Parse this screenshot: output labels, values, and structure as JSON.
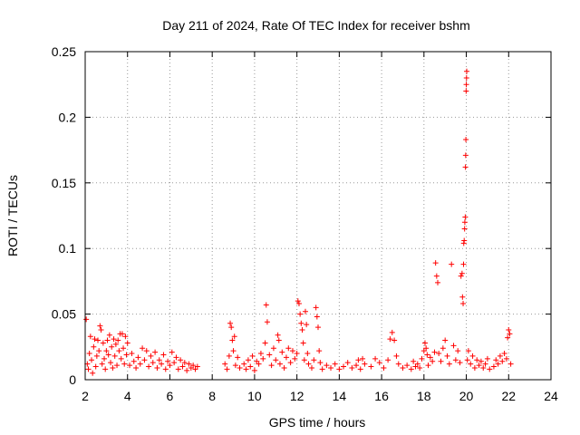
{
  "chart_data": {
    "type": "scatter",
    "title": "Day 211 of 2024, Rate Of TEC Index for receiver bshm",
    "xlabel": "GPS time / hours",
    "ylabel": "ROTI / TECUs",
    "xlim": [
      2,
      24
    ],
    "ylim": [
      0,
      0.25
    ],
    "xticks": [
      2,
      4,
      6,
      8,
      10,
      12,
      14,
      16,
      18,
      20,
      22,
      24
    ],
    "xtick_labels": [
      "2",
      "4",
      "6",
      "8",
      "10",
      "12",
      "14",
      "16",
      "18",
      "20",
      "22",
      "24"
    ],
    "yticks": [
      0,
      0.05,
      0.1,
      0.15,
      0.2,
      0.25
    ],
    "ytick_labels": [
      "0",
      "0.05",
      "0.1",
      "0.15",
      "0.2",
      "0.25"
    ],
    "grid": true,
    "marker": "+",
    "color": "#ff0000",
    "series": [
      {
        "name": "ROTI",
        "points": [
          [
            2.05,
            0.046
          ],
          [
            2.1,
            0.012
          ],
          [
            2.15,
            0.008
          ],
          [
            2.2,
            0.02
          ],
          [
            2.25,
            0.033
          ],
          [
            2.3,
            0.015
          ],
          [
            2.35,
            0.005
          ],
          [
            2.4,
            0.025
          ],
          [
            2.45,
            0.031
          ],
          [
            2.5,
            0.01
          ],
          [
            2.55,
            0.018
          ],
          [
            2.6,
            0.03
          ],
          [
            2.65,
            0.022
          ],
          [
            2.7,
            0.041
          ],
          [
            2.75,
            0.038
          ],
          [
            2.8,
            0.012
          ],
          [
            2.85,
            0.028
          ],
          [
            2.9,
            0.016
          ],
          [
            2.95,
            0.008
          ],
          [
            3.0,
            0.022
          ],
          [
            3.05,
            0.03
          ],
          [
            3.1,
            0.019
          ],
          [
            3.15,
            0.034
          ],
          [
            3.2,
            0.013
          ],
          [
            3.25,
            0.025
          ],
          [
            3.3,
            0.009
          ],
          [
            3.35,
            0.031
          ],
          [
            3.4,
            0.018
          ],
          [
            3.45,
            0.027
          ],
          [
            3.5,
            0.011
          ],
          [
            3.55,
            0.03
          ],
          [
            3.6,
            0.022
          ],
          [
            3.65,
            0.035
          ],
          [
            3.7,
            0.016
          ],
          [
            3.75,
            0.035
          ],
          [
            3.8,
            0.024
          ],
          [
            3.85,
            0.012
          ],
          [
            3.9,
            0.033
          ],
          [
            3.95,
            0.019
          ],
          [
            4.0,
            0.028
          ],
          [
            4.1,
            0.011
          ],
          [
            4.2,
            0.02
          ],
          [
            4.3,
            0.014
          ],
          [
            4.4,
            0.009
          ],
          [
            4.5,
            0.017
          ],
          [
            4.6,
            0.012
          ],
          [
            4.7,
            0.024
          ],
          [
            4.8,
            0.015
          ],
          [
            4.9,
            0.022
          ],
          [
            5.0,
            0.01
          ],
          [
            5.1,
            0.018
          ],
          [
            5.2,
            0.013
          ],
          [
            5.3,
            0.021
          ],
          [
            5.4,
            0.009
          ],
          [
            5.5,
            0.015
          ],
          [
            5.6,
            0.012
          ],
          [
            5.7,
            0.019
          ],
          [
            5.8,
            0.008
          ],
          [
            5.9,
            0.014
          ],
          [
            6.0,
            0.011
          ],
          [
            6.1,
            0.021
          ],
          [
            6.2,
            0.013
          ],
          [
            6.3,
            0.017
          ],
          [
            6.4,
            0.008
          ],
          [
            6.5,
            0.015
          ],
          [
            6.6,
            0.01
          ],
          [
            6.7,
            0.013
          ],
          [
            6.8,
            0.007
          ],
          [
            6.9,
            0.012
          ],
          [
            7.0,
            0.009
          ],
          [
            7.1,
            0.011
          ],
          [
            7.2,
            0.008
          ],
          [
            7.3,
            0.01
          ],
          [
            8.6,
            0.012
          ],
          [
            8.7,
            0.008
          ],
          [
            8.8,
            0.018
          ],
          [
            8.85,
            0.043
          ],
          [
            8.9,
            0.04
          ],
          [
            8.95,
            0.03
          ],
          [
            9.0,
            0.022
          ],
          [
            9.05,
            0.033
          ],
          [
            9.1,
            0.011
          ],
          [
            9.2,
            0.017
          ],
          [
            9.3,
            0.009
          ],
          [
            9.5,
            0.012
          ],
          [
            9.6,
            0.008
          ],
          [
            9.7,
            0.015
          ],
          [
            9.8,
            0.01
          ],
          [
            9.9,
            0.018
          ],
          [
            10.0,
            0.007
          ],
          [
            10.1,
            0.014
          ],
          [
            10.2,
            0.012
          ],
          [
            10.3,
            0.02
          ],
          [
            10.4,
            0.016
          ],
          [
            10.5,
            0.028
          ],
          [
            10.55,
            0.057
          ],
          [
            10.6,
            0.044
          ],
          [
            10.7,
            0.019
          ],
          [
            10.8,
            0.011
          ],
          [
            10.9,
            0.024
          ],
          [
            11.0,
            0.015
          ],
          [
            11.1,
            0.034
          ],
          [
            11.15,
            0.03
          ],
          [
            11.2,
            0.012
          ],
          [
            11.3,
            0.021
          ],
          [
            11.4,
            0.009
          ],
          [
            11.5,
            0.017
          ],
          [
            11.6,
            0.024
          ],
          [
            11.7,
            0.013
          ],
          [
            11.8,
            0.022
          ],
          [
            11.9,
            0.016
          ],
          [
            12.0,
            0.02
          ],
          [
            12.05,
            0.06
          ],
          [
            12.1,
            0.058
          ],
          [
            12.15,
            0.05
          ],
          [
            12.2,
            0.043
          ],
          [
            12.25,
            0.038
          ],
          [
            12.3,
            0.028
          ],
          [
            12.35,
            0.015
          ],
          [
            12.4,
            0.052
          ],
          [
            12.45,
            0.042
          ],
          [
            12.5,
            0.02
          ],
          [
            12.55,
            0.012
          ],
          [
            12.7,
            0.009
          ],
          [
            12.8,
            0.015
          ],
          [
            12.9,
            0.055
          ],
          [
            12.95,
            0.048
          ],
          [
            13.0,
            0.04
          ],
          [
            13.05,
            0.022
          ],
          [
            13.1,
            0.013
          ],
          [
            13.2,
            0.008
          ],
          [
            13.4,
            0.011
          ],
          [
            13.6,
            0.009
          ],
          [
            13.8,
            0.012
          ],
          [
            14.0,
            0.008
          ],
          [
            14.2,
            0.01
          ],
          [
            14.4,
            0.013
          ],
          [
            14.6,
            0.009
          ],
          [
            14.8,
            0.011
          ],
          [
            14.9,
            0.015
          ],
          [
            15.0,
            0.008
          ],
          [
            15.1,
            0.016
          ],
          [
            15.2,
            0.012
          ],
          [
            15.5,
            0.01
          ],
          [
            15.7,
            0.016
          ],
          [
            15.9,
            0.013
          ],
          [
            16.1,
            0.009
          ],
          [
            16.3,
            0.015
          ],
          [
            16.4,
            0.031
          ],
          [
            16.5,
            0.036
          ],
          [
            16.6,
            0.03
          ],
          [
            16.7,
            0.018
          ],
          [
            16.8,
            0.012
          ],
          [
            17.0,
            0.009
          ],
          [
            17.2,
            0.011
          ],
          [
            17.4,
            0.008
          ],
          [
            17.5,
            0.014
          ],
          [
            17.6,
            0.01
          ],
          [
            17.7,
            0.012
          ],
          [
            17.8,
            0.009
          ],
          [
            17.9,
            0.016
          ],
          [
            18.0,
            0.022
          ],
          [
            18.05,
            0.028
          ],
          [
            18.1,
            0.024
          ],
          [
            18.15,
            0.019
          ],
          [
            18.2,
            0.011
          ],
          [
            18.3,
            0.017
          ],
          [
            18.4,
            0.014
          ],
          [
            18.5,
            0.021
          ],
          [
            18.55,
            0.089
          ],
          [
            18.6,
            0.079
          ],
          [
            18.65,
            0.074
          ],
          [
            18.7,
            0.02
          ],
          [
            18.8,
            0.014
          ],
          [
            18.9,
            0.024
          ],
          [
            19.0,
            0.03
          ],
          [
            19.1,
            0.018
          ],
          [
            19.2,
            0.012
          ],
          [
            19.3,
            0.088
          ],
          [
            19.4,
            0.026
          ],
          [
            19.5,
            0.015
          ],
          [
            19.6,
            0.022
          ],
          [
            19.7,
            0.013
          ],
          [
            19.75,
            0.079
          ],
          [
            19.8,
            0.081
          ],
          [
            19.82,
            0.063
          ],
          [
            19.85,
            0.058
          ],
          [
            19.87,
            0.088
          ],
          [
            19.88,
            0.104
          ],
          [
            19.9,
            0.106
          ],
          [
            19.92,
            0.115
          ],
          [
            19.93,
            0.12
          ],
          [
            19.95,
            0.124
          ],
          [
            19.96,
            0.162
          ],
          [
            19.97,
            0.171
          ],
          [
            19.98,
            0.183
          ],
          [
            19.99,
            0.22
          ],
          [
            20.0,
            0.225
          ],
          [
            20.01,
            0.23
          ],
          [
            20.02,
            0.235
          ],
          [
            20.05,
            0.015
          ],
          [
            20.1,
            0.022
          ],
          [
            20.2,
            0.012
          ],
          [
            20.3,
            0.018
          ],
          [
            20.4,
            0.009
          ],
          [
            20.5,
            0.015
          ],
          [
            20.6,
            0.011
          ],
          [
            20.7,
            0.014
          ],
          [
            20.8,
            0.009
          ],
          [
            20.9,
            0.012
          ],
          [
            21.0,
            0.016
          ],
          [
            21.1,
            0.008
          ],
          [
            21.3,
            0.01
          ],
          [
            21.4,
            0.015
          ],
          [
            21.5,
            0.012
          ],
          [
            21.6,
            0.018
          ],
          [
            21.7,
            0.014
          ],
          [
            21.8,
            0.02
          ],
          [
            21.9,
            0.016
          ],
          [
            21.95,
            0.032
          ],
          [
            22.0,
            0.038
          ],
          [
            22.05,
            0.035
          ],
          [
            22.1,
            0.012
          ]
        ]
      }
    ]
  }
}
